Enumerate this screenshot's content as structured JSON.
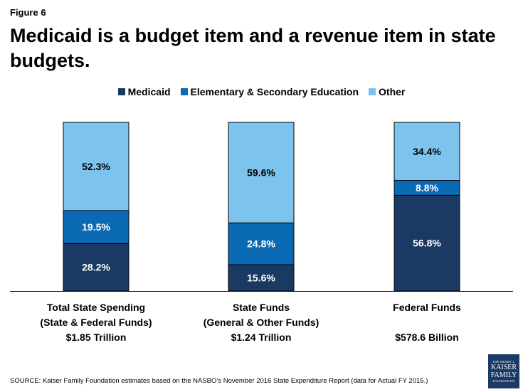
{
  "figure_label": "Figure 6",
  "title": "Medicaid is a budget item and a revenue item in state budgets.",
  "source": "SOURCE: Kaiser Family Foundation  estimates based on the NASBO’s November 2016 State Expenditure Report (data for Actual FY 2015.)",
  "logo": {
    "line1": "THE HENRY J.",
    "line2": "KAISER",
    "line3": "FAMILY",
    "line4": "FOUNDATION"
  },
  "colors": {
    "medicaid": "#1b3a63",
    "education": "#0b6ab4",
    "other": "#7cc4ee"
  },
  "chart_data": {
    "type": "bar",
    "stacked": true,
    "percent_stacked": true,
    "legend_position": "top",
    "categories": [
      {
        "line1": "Total State Spending",
        "line2": "(State & Federal Funds)",
        "line3": "$1.85 Trillion"
      },
      {
        "line1": "State Funds",
        "line2": "(General & Other Funds)",
        "line3": "$1.24 Trillion"
      },
      {
        "line1": "Federal Funds",
        "line2": "",
        "line3": "$578.6 Billion"
      }
    ],
    "series": [
      {
        "name": "Medicaid",
        "values": [
          28.2,
          15.6,
          56.8
        ],
        "labels": [
          "28.2%",
          "15.6%",
          "56.8%"
        ]
      },
      {
        "name": "Elementary & Secondary Education",
        "values": [
          19.5,
          24.8,
          8.8
        ],
        "labels": [
          "19.5%",
          "24.8%",
          "8.8%"
        ]
      },
      {
        "name": "Other",
        "values": [
          52.3,
          59.6,
          34.4
        ],
        "labels": [
          "52.3%",
          "59.6%",
          "34.4%"
        ]
      }
    ],
    "ylim": [
      0,
      100
    ]
  }
}
